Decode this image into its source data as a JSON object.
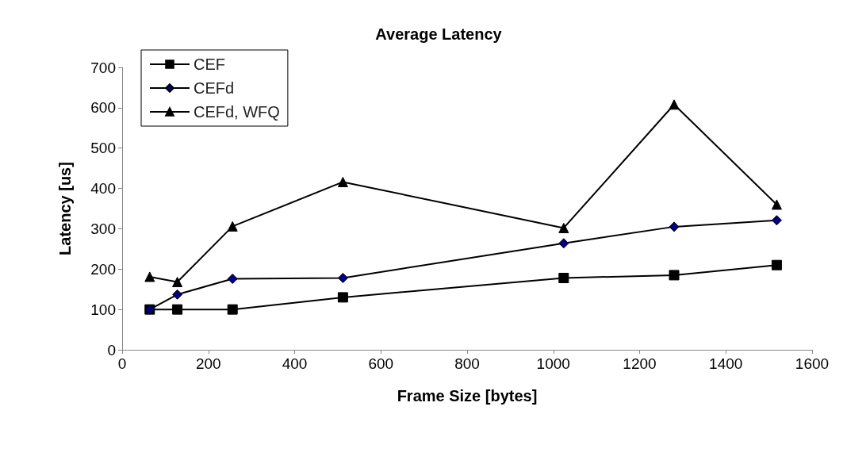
{
  "chart_data": {
    "type": "line",
    "title": "Average Latency",
    "xlabel": "Frame Size [bytes]",
    "ylabel": "Latency [us]",
    "x": [
      64,
      128,
      256,
      512,
      1024,
      1280,
      1518
    ],
    "series": [
      {
        "name": "CEF",
        "color": "#000000",
        "marker": "square",
        "values": [
          100,
          100,
          100,
          130,
          178,
          185,
          210
        ]
      },
      {
        "name": "CEFd",
        "color": "#000080",
        "marker": "diamond",
        "values": [
          100,
          137,
          176,
          178,
          264,
          305,
          321
        ]
      },
      {
        "name": "CEFd, WFQ",
        "color": "#000000",
        "marker": "triangle",
        "values": [
          181,
          168,
          306,
          416,
          302,
          608,
          360
        ]
      }
    ],
    "xlim": [
      0,
      1600
    ],
    "xticks": [
      0,
      200,
      400,
      600,
      800,
      1000,
      1200,
      1400,
      1600
    ],
    "ylim": [
      0,
      700
    ],
    "yticks": [
      0,
      100,
      200,
      300,
      400,
      500,
      600,
      700
    ],
    "grid": false,
    "legend": "top left"
  }
}
